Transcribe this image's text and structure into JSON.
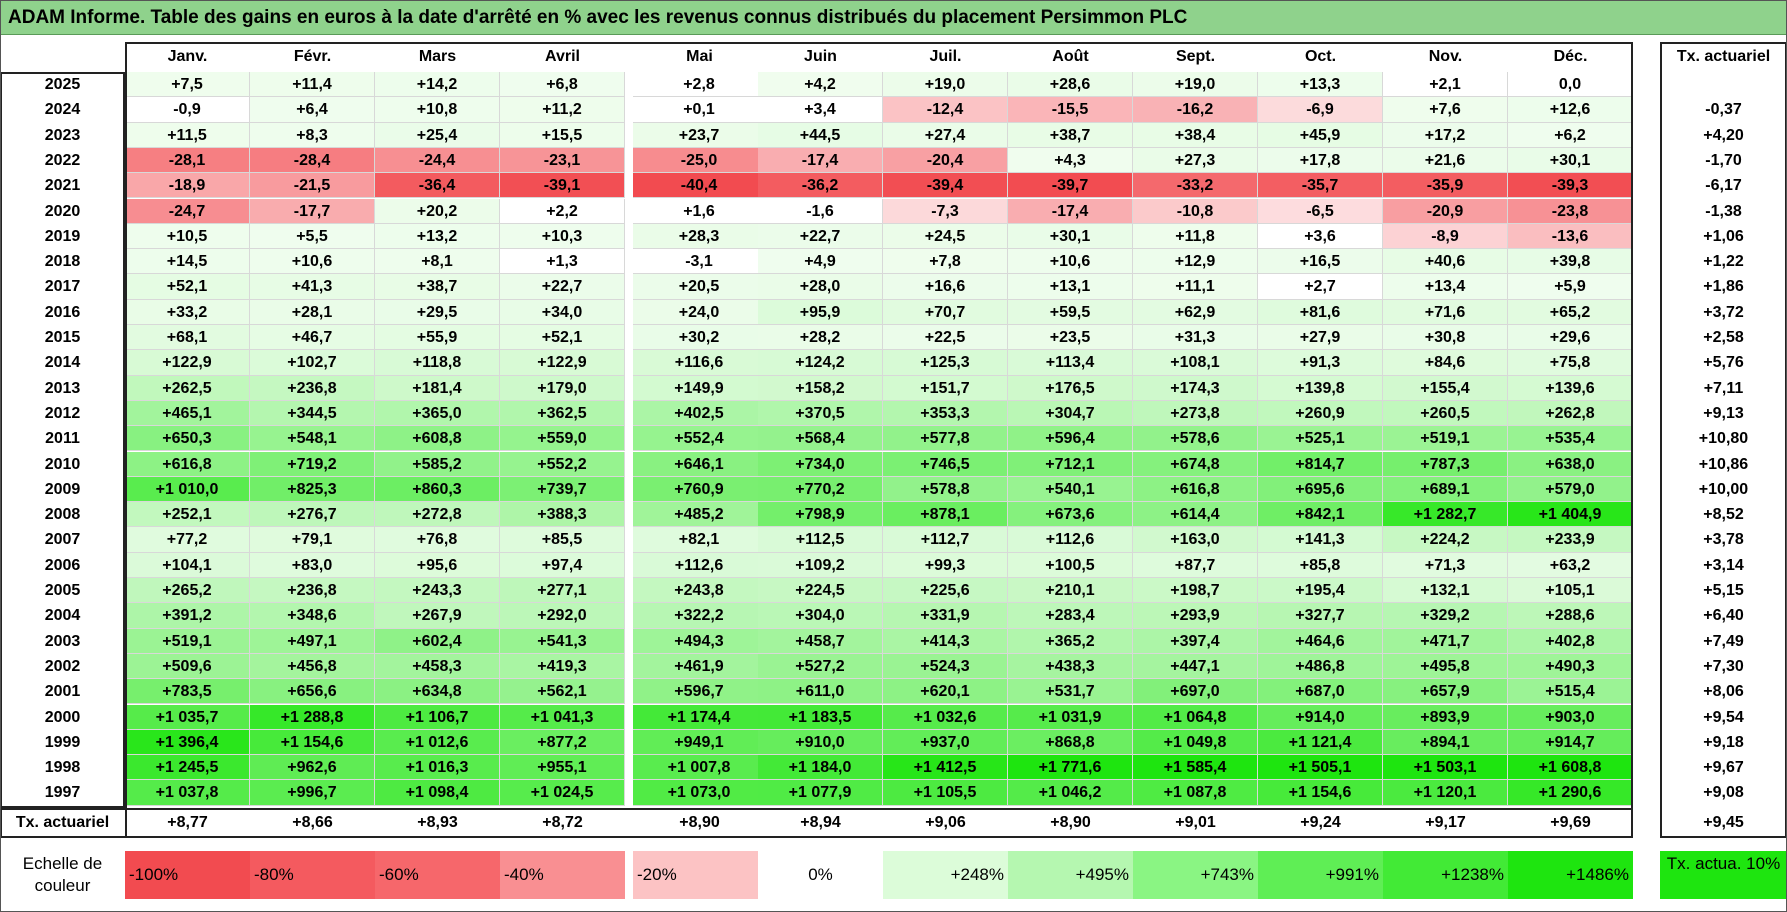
{
  "title": "ADAM Informe. Table des gains en euros à la date d'arrêté en % avec les revenus connus distribués du placement Persimmon PLC",
  "months": [
    "Janv.",
    "Févr.",
    "Mars",
    "Avril",
    "Mai",
    "Juin",
    "Juil.",
    "Août",
    "Sept.",
    "Oct.",
    "Nov.",
    "Déc."
  ],
  "tx_header": "Tx. actuariel",
  "rows": [
    {
      "year": "2025",
      "values": [
        "+7,5",
        "+11,4",
        "+14,2",
        "+6,8",
        "+2,8",
        "+4,2",
        "+19,0",
        "+28,6",
        "+19,0",
        "+13,3",
        "+2,1",
        "0,0"
      ],
      "tx": ""
    },
    {
      "year": "2024",
      "values": [
        "-0,9",
        "+6,4",
        "+10,8",
        "+11,2",
        "+0,1",
        "+3,4",
        "-12,4",
        "-15,5",
        "-16,2",
        "-6,9",
        "+7,6",
        "+12,6"
      ],
      "tx": "-0,37"
    },
    {
      "year": "2023",
      "values": [
        "+11,5",
        "+8,3",
        "+25,4",
        "+15,5",
        "+23,7",
        "+44,5",
        "+27,4",
        "+38,7",
        "+38,4",
        "+45,9",
        "+17,2",
        "+6,2"
      ],
      "tx": "+4,20"
    },
    {
      "year": "2022",
      "values": [
        "-28,1",
        "-28,4",
        "-24,4",
        "-23,1",
        "-25,0",
        "-17,4",
        "-20,4",
        "+4,3",
        "+27,3",
        "+17,8",
        "+21,6",
        "+30,1"
      ],
      "tx": "-1,70"
    },
    {
      "year": "2021",
      "values": [
        "-18,9",
        "-21,5",
        "-36,4",
        "-39,1",
        "-40,4",
        "-36,2",
        "-39,4",
        "-39,7",
        "-33,2",
        "-35,7",
        "-35,9",
        "-39,3"
      ],
      "tx": "-6,17"
    },
    {
      "year": "2020",
      "values": [
        "-24,7",
        "-17,7",
        "+20,2",
        "+2,2",
        "+1,6",
        "-1,6",
        "-7,3",
        "-17,4",
        "-10,8",
        "-6,5",
        "-20,9",
        "-23,8"
      ],
      "tx": "-1,38"
    },
    {
      "year": "2019",
      "values": [
        "+10,5",
        "+5,5",
        "+13,2",
        "+10,3",
        "+28,3",
        "+22,7",
        "+24,5",
        "+30,1",
        "+11,8",
        "+3,6",
        "-8,9",
        "-13,6"
      ],
      "tx": "+1,06"
    },
    {
      "year": "2018",
      "values": [
        "+14,5",
        "+10,6",
        "+8,1",
        "+1,3",
        "-3,1",
        "+4,9",
        "+7,8",
        "+10,6",
        "+12,9",
        "+16,5",
        "+40,6",
        "+39,8"
      ],
      "tx": "+1,22"
    },
    {
      "year": "2017",
      "values": [
        "+52,1",
        "+41,3",
        "+38,7",
        "+22,7",
        "+20,5",
        "+28,0",
        "+16,6",
        "+13,1",
        "+11,1",
        "+2,7",
        "+13,4",
        "+5,9"
      ],
      "tx": "+1,86"
    },
    {
      "year": "2016",
      "values": [
        "+33,2",
        "+28,1",
        "+29,5",
        "+34,0",
        "+24,0",
        "+95,9",
        "+70,7",
        "+59,5",
        "+62,9",
        "+81,6",
        "+71,6",
        "+65,2"
      ],
      "tx": "+3,72"
    },
    {
      "year": "2015",
      "values": [
        "+68,1",
        "+46,7",
        "+55,9",
        "+52,1",
        "+30,2",
        "+28,2",
        "+22,5",
        "+23,5",
        "+31,3",
        "+27,9",
        "+30,8",
        "+29,6"
      ],
      "tx": "+2,58"
    },
    {
      "year": "2014",
      "values": [
        "+122,9",
        "+102,7",
        "+118,8",
        "+122,9",
        "+116,6",
        "+124,2",
        "+125,3",
        "+113,4",
        "+108,1",
        "+91,3",
        "+84,6",
        "+75,8"
      ],
      "tx": "+5,76"
    },
    {
      "year": "2013",
      "values": [
        "+262,5",
        "+236,8",
        "+181,4",
        "+179,0",
        "+149,9",
        "+158,2",
        "+151,7",
        "+176,5",
        "+174,3",
        "+139,8",
        "+155,4",
        "+139,6"
      ],
      "tx": "+7,11"
    },
    {
      "year": "2012",
      "values": [
        "+465,1",
        "+344,5",
        "+365,0",
        "+362,5",
        "+402,5",
        "+370,5",
        "+353,3",
        "+304,7",
        "+273,8",
        "+260,9",
        "+260,5",
        "+262,8"
      ],
      "tx": "+9,13"
    },
    {
      "year": "2011",
      "values": [
        "+650,3",
        "+548,1",
        "+608,8",
        "+559,0",
        "+552,4",
        "+568,4",
        "+577,8",
        "+596,4",
        "+578,6",
        "+525,1",
        "+519,1",
        "+535,4"
      ],
      "tx": "+10,80"
    },
    {
      "year": "2010",
      "values": [
        "+616,8",
        "+719,2",
        "+585,2",
        "+552,2",
        "+646,1",
        "+734,0",
        "+746,5",
        "+712,1",
        "+674,8",
        "+814,7",
        "+787,3",
        "+638,0"
      ],
      "tx": "+10,86"
    },
    {
      "year": "2009",
      "values": [
        "+1 010,0",
        "+825,3",
        "+860,3",
        "+739,7",
        "+760,9",
        "+770,2",
        "+578,8",
        "+540,1",
        "+616,8",
        "+695,6",
        "+689,1",
        "+579,0"
      ],
      "tx": "+10,00"
    },
    {
      "year": "2008",
      "values": [
        "+252,1",
        "+276,7",
        "+272,8",
        "+388,3",
        "+485,2",
        "+798,9",
        "+878,1",
        "+673,6",
        "+614,4",
        "+842,1",
        "+1 282,7",
        "+1 404,9"
      ],
      "tx": "+8,52"
    },
    {
      "year": "2007",
      "values": [
        "+77,2",
        "+79,1",
        "+76,8",
        "+85,5",
        "+82,1",
        "+112,5",
        "+112,7",
        "+112,6",
        "+163,0",
        "+141,3",
        "+224,2",
        "+233,9"
      ],
      "tx": "+3,78"
    },
    {
      "year": "2006",
      "values": [
        "+104,1",
        "+83,0",
        "+95,6",
        "+97,4",
        "+112,6",
        "+109,2",
        "+99,3",
        "+100,5",
        "+87,7",
        "+85,8",
        "+71,3",
        "+63,2"
      ],
      "tx": "+3,14"
    },
    {
      "year": "2005",
      "values": [
        "+265,2",
        "+236,8",
        "+243,3",
        "+277,1",
        "+243,8",
        "+224,5",
        "+225,6",
        "+210,1",
        "+198,7",
        "+195,4",
        "+132,1",
        "+105,1"
      ],
      "tx": "+5,15"
    },
    {
      "year": "2004",
      "values": [
        "+391,2",
        "+348,6",
        "+267,9",
        "+292,0",
        "+322,2",
        "+304,0",
        "+331,9",
        "+283,4",
        "+293,9",
        "+327,7",
        "+329,2",
        "+288,6"
      ],
      "tx": "+6,40"
    },
    {
      "year": "2003",
      "values": [
        "+519,1",
        "+497,1",
        "+602,4",
        "+541,3",
        "+494,3",
        "+458,7",
        "+414,3",
        "+365,2",
        "+397,4",
        "+464,6",
        "+471,7",
        "+402,8"
      ],
      "tx": "+7,49"
    },
    {
      "year": "2002",
      "values": [
        "+509,6",
        "+456,8",
        "+458,3",
        "+419,3",
        "+461,9",
        "+527,2",
        "+524,3",
        "+438,3",
        "+447,1",
        "+486,8",
        "+495,8",
        "+490,3"
      ],
      "tx": "+7,30"
    },
    {
      "year": "2001",
      "values": [
        "+783,5",
        "+656,6",
        "+634,8",
        "+562,1",
        "+596,7",
        "+611,0",
        "+620,1",
        "+531,7",
        "+697,0",
        "+687,0",
        "+657,9",
        "+515,4"
      ],
      "tx": "+8,06"
    },
    {
      "year": "2000",
      "values": [
        "+1 035,7",
        "+1 288,8",
        "+1 106,7",
        "+1 041,3",
        "+1 174,4",
        "+1 183,5",
        "+1 032,6",
        "+1 031,9",
        "+1 064,8",
        "+914,0",
        "+893,9",
        "+903,0"
      ],
      "tx": "+9,54"
    },
    {
      "year": "1999",
      "values": [
        "+1 396,4",
        "+1 154,6",
        "+1 012,6",
        "+877,2",
        "+949,1",
        "+910,0",
        "+937,0",
        "+868,8",
        "+1 049,8",
        "+1 121,4",
        "+894,1",
        "+914,7"
      ],
      "tx": "+9,18"
    },
    {
      "year": "1998",
      "values": [
        "+1 245,5",
        "+962,6",
        "+1 016,3",
        "+955,1",
        "+1 007,8",
        "+1 184,0",
        "+1 412,5",
        "+1 771,6",
        "+1 585,4",
        "+1 505,1",
        "+1 503,1",
        "+1 608,8"
      ],
      "tx": "+9,67"
    },
    {
      "year": "1997",
      "values": [
        "+1 037,8",
        "+996,7",
        "+1 098,4",
        "+1 024,5",
        "+1 073,0",
        "+1 077,9",
        "+1 105,5",
        "+1 046,2",
        "+1 087,8",
        "+1 154,6",
        "+1 120,1",
        "+1 290,6"
      ],
      "tx": "+9,08"
    }
  ],
  "footer": {
    "label": "Tx. actuariel",
    "values": [
      "+8,77",
      "+8,66",
      "+8,93",
      "+8,72",
      "+8,90",
      "+8,94",
      "+9,06",
      "+8,90",
      "+9,01",
      "+9,24",
      "+9,17",
      "+9,69"
    ],
    "tx": "+9,45"
  },
  "legend": {
    "label": "Echelle de couleur",
    "items": [
      {
        "text": "-100%",
        "color": "#f24b50"
      },
      {
        "text": "-80%",
        "color": "#f45a5f"
      },
      {
        "text": "-60%",
        "color": "#f6676b"
      },
      {
        "text": "-40%",
        "color": "#f98f92"
      },
      {
        "text": "-20%",
        "color": "#fcc3c4"
      },
      {
        "text": "0%",
        "color": "#ffffff"
      },
      {
        "text": "+248%",
        "color": "#dcfcd9"
      },
      {
        "text": "+495%",
        "color": "#b5f7b0"
      },
      {
        "text": "+743%",
        "color": "#8af583"
      },
      {
        "text": "+991%",
        "color": "#5fee55"
      },
      {
        "text": "+1238%",
        "color": "#42ea36"
      },
      {
        "text": "+1486%",
        "color": "#1ee50f"
      }
    ],
    "tx_label": "Tx. actua. 10%",
    "tx_color": "#1ee50f"
  }
}
